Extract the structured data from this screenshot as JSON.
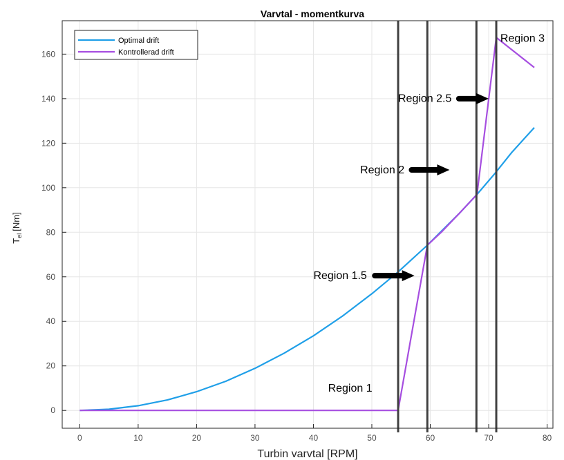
{
  "chart_data": {
    "type": "line",
    "title": "Varvtal - momentkurva",
    "xlabel": "Turbin varvtal [RPM]",
    "ylabel": "T",
    "ylabel_sub": "el",
    "ylabel_unit": "[Nm]",
    "xlim": [
      -3,
      81
    ],
    "ylim": [
      -8,
      175
    ],
    "xticks": [
      0,
      10,
      20,
      30,
      40,
      50,
      60,
      70,
      80
    ],
    "yticks": [
      0,
      20,
      40,
      60,
      80,
      100,
      120,
      140,
      160
    ],
    "grid": true,
    "legend_position": "top-left",
    "series": [
      {
        "name": "Optimal drift",
        "color": "#1f9fe8",
        "x": [
          0,
          5,
          10,
          15,
          20,
          25,
          30,
          35,
          40,
          45,
          50,
          54.5,
          59.5,
          65,
          68,
          71,
          74,
          77.8
        ],
        "y": [
          0,
          0.52,
          2.1,
          4.7,
          8.4,
          13.1,
          18.9,
          25.7,
          33.5,
          42.4,
          52.4,
          62.2,
          74.2,
          88.6,
          97.0,
          106.2,
          116.0,
          127.0
        ]
      },
      {
        "name": "Kontrollerad drift",
        "color": "#a64ee0",
        "x": [
          0,
          54.5,
          59.5,
          62,
          65,
          68,
          71.3,
          77.8
        ],
        "y": [
          0,
          0,
          74.2,
          80.3,
          88.6,
          97.0,
          167.5,
          154.0
        ]
      }
    ],
    "vertical_lines": [
      {
        "x": 54.5,
        "color": "#404040"
      },
      {
        "x": 59.5,
        "color": "#404040"
      },
      {
        "x": 67.9,
        "color": "#404040"
      },
      {
        "x": 71.3,
        "color": "#404040"
      }
    ],
    "annotations": [
      {
        "text": "Region 1",
        "x": 42.5,
        "y": 8.5,
        "arrow": false
      },
      {
        "text": "Region 1.5",
        "x": 40.0,
        "y": 59.0,
        "arrow": true,
        "arrow_from": 50.5,
        "arrow_to": 57.3,
        "arrow_y": 60.5
      },
      {
        "text": "Region 2",
        "x": 48.0,
        "y": 106.5,
        "arrow": true,
        "arrow_from": 56.8,
        "arrow_to": 63.3,
        "arrow_y": 108.0
      },
      {
        "text": "Region 2.5",
        "x": 54.5,
        "y": 138.5,
        "arrow": true,
        "arrow_from": 64.9,
        "arrow_to": 70.0,
        "arrow_y": 140.0
      },
      {
        "text": "Region 3",
        "x": 72.0,
        "y": 165.5,
        "arrow": false
      }
    ]
  }
}
